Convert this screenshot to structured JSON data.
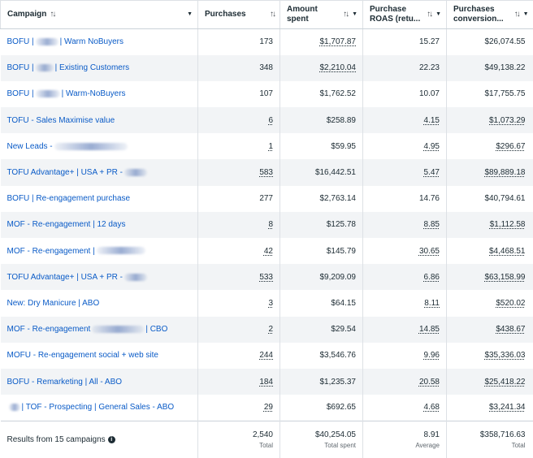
{
  "columns": {
    "campaign": "Campaign",
    "purchases": "Purchases",
    "amount_spent": "Amount spent",
    "roas": "Purchase ROAS (retu...",
    "conversion": "Purchases conversion..."
  },
  "rows": [
    {
      "pre": "BOFU |",
      "blur": true,
      "post": "| Warm NoBuyers",
      "purchases": "173",
      "spent": "$1,707.87",
      "roas": "15.27",
      "conv": "$26,074.55",
      "d": [
        false,
        true,
        false,
        false
      ]
    },
    {
      "pre": "BOFU |",
      "blur": true,
      "post": "| Existing Customers",
      "purchases": "348",
      "spent": "$2,210.04",
      "roas": "22.23",
      "conv": "$49,138.22",
      "d": [
        false,
        true,
        false,
        false
      ]
    },
    {
      "pre": "BOFU |",
      "blur": true,
      "post": "| Warm-NoBuyers",
      "purchases": "107",
      "spent": "$1,762.52",
      "roas": "10.07",
      "conv": "$17,755.75",
      "d": [
        false,
        false,
        false,
        false
      ]
    },
    {
      "pre": "TOFU - Sales Maximise value",
      "blur": false,
      "post": "",
      "purchases": "6",
      "spent": "$258.89",
      "roas": "4.15",
      "conv": "$1,073.29",
      "d": [
        true,
        false,
        true,
        true
      ]
    },
    {
      "pre": "New Leads -",
      "blur": true,
      "post": "",
      "purchases": "1",
      "spent": "$59.95",
      "roas": "4.95",
      "conv": "$296.67",
      "d": [
        true,
        false,
        true,
        true
      ]
    },
    {
      "pre": "TOFU Advantage+ | USA + PR -",
      "blur": true,
      "post": "",
      "purchases": "583",
      "spent": "$16,442.51",
      "roas": "5.47",
      "conv": "$89,889.18",
      "d": [
        true,
        false,
        true,
        true
      ]
    },
    {
      "pre": "BOFU | Re-engagement purchase",
      "blur": false,
      "post": "",
      "purchases": "277",
      "spent": "$2,763.14",
      "roas": "14.76",
      "conv": "$40,794.61",
      "d": [
        false,
        false,
        false,
        false
      ]
    },
    {
      "pre": "MOF - Re-engagement | 12 days",
      "blur": false,
      "post": "",
      "purchases": "8",
      "spent": "$125.78",
      "roas": "8.85",
      "conv": "$1,112.58",
      "d": [
        true,
        false,
        true,
        true
      ]
    },
    {
      "pre": "MOF - Re-engagement |",
      "blur": true,
      "post": "",
      "purchases": "42",
      "spent": "$145.79",
      "roas": "30.65",
      "conv": "$4,468.51",
      "d": [
        true,
        false,
        true,
        true
      ]
    },
    {
      "pre": "TOFU Advantage+ | USA + PR -",
      "blur": true,
      "post": "",
      "purchases": "533",
      "spent": "$9,209.09",
      "roas": "6.86",
      "conv": "$63,158.99",
      "d": [
        true,
        false,
        true,
        true
      ]
    },
    {
      "pre": "New: Dry Manicure | ABO",
      "blur": false,
      "post": "",
      "purchases": "3",
      "spent": "$64.15",
      "roas": "8.11",
      "conv": "$520.02",
      "d": [
        true,
        false,
        true,
        true
      ]
    },
    {
      "pre": "MOF - Re-engagement",
      "blur": true,
      "post": "| CBO",
      "purchases": "2",
      "spent": "$29.54",
      "roas": "14.85",
      "conv": "$438.67",
      "d": [
        true,
        false,
        true,
        true
      ]
    },
    {
      "pre": "MOFU - Re-engagement social + web site",
      "blur": false,
      "post": "",
      "purchases": "244",
      "spent": "$3,546.76",
      "roas": "9.96",
      "conv": "$35,336.03",
      "d": [
        true,
        false,
        true,
        true
      ]
    },
    {
      "pre": "BOFU - Remarketing | All - ABO",
      "blur": false,
      "post": "",
      "purchases": "184",
      "spent": "$1,235.37",
      "roas": "20.58",
      "conv": "$25,418.22",
      "d": [
        true,
        false,
        true,
        true
      ]
    },
    {
      "pre": "",
      "blur": true,
      "post": "| TOF - Prospecting | General Sales - ABO",
      "purchases": "29",
      "spent": "$692.65",
      "roas": "4.68",
      "conv": "$3,241.34",
      "d": [
        true,
        false,
        true,
        true
      ]
    }
  ],
  "footer": {
    "label": "Results from 15 campaigns",
    "purchases": "2,540",
    "purchases_label": "Total",
    "spent": "$40,254.05",
    "spent_label": "Total spent",
    "roas": "8.91",
    "roas_label": "Average",
    "conv": "$358,716.63",
    "conv_label": "Total"
  },
  "icons": {
    "sort": "sort-arrows-icon",
    "caret": "caret-down-icon",
    "info": "info-icon"
  }
}
